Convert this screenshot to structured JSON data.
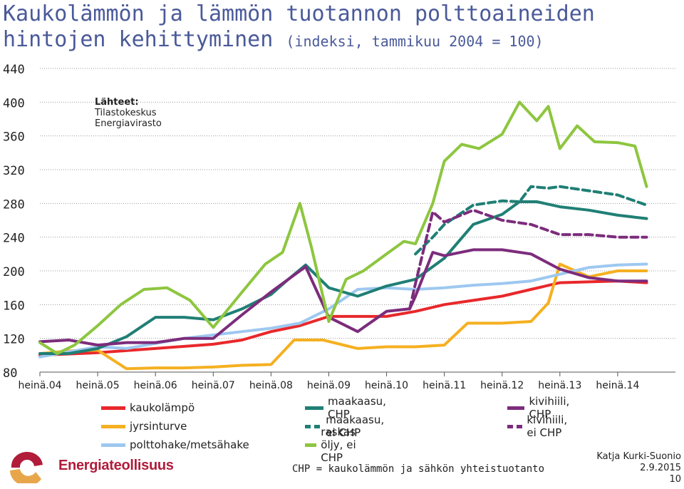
{
  "title": {
    "main": "Kaukolämmön ja lämmön tuotannon polttoaineiden",
    "line2": "hintojen kehittyminen",
    "subtitle": "(indeksi, tammikuu 2004 = 100)"
  },
  "sources": {
    "heading": "Lähteet:",
    "items": [
      "Tilastokeskus",
      "Energiavirasto"
    ]
  },
  "note": "CHP = kaukolämmön ja sähkön yhteistuotanto",
  "author": {
    "name": "Katja Kurki-Suonio",
    "date": "2.9.2015",
    "page": "10"
  },
  "logo": {
    "text": "Energiateollisuus",
    "colors": [
      "#b01c3a",
      "#e8a64b"
    ]
  },
  "chart_data": {
    "type": "line",
    "ylim": [
      80,
      440
    ],
    "yticks": [
      80,
      120,
      160,
      200,
      240,
      280,
      320,
      360,
      400,
      440
    ],
    "xlim": [
      2004.0,
      2015.0
    ],
    "xtick_labels": [
      "heinä.04",
      "heinä.05",
      "heinä.06",
      "heinä.07",
      "heinä.08",
      "heinä.09",
      "heinä.10",
      "heinä.11",
      "heinä.12",
      "heinä.13",
      "heinä.14"
    ],
    "grid": true,
    "legend_position": "bottom",
    "series": [
      {
        "name": "kaukolämpö",
        "color": "#e8282b",
        "dash": false,
        "x": [
          2004.0,
          2005.0,
          2006.0,
          2007.0,
          2007.5,
          2008.0,
          2008.5,
          2009.0,
          2009.5,
          2010.0,
          2010.5,
          2011.0,
          2011.5,
          2012.0,
          2012.5,
          2013.0,
          2013.5,
          2014.0,
          2014.5
        ],
        "y": [
          100,
          103,
          108,
          113,
          118,
          128,
          135,
          146,
          146,
          146,
          152,
          160,
          165,
          170,
          178,
          186,
          187,
          188,
          186
        ]
      },
      {
        "name": "jyrsinturve",
        "color": "#f5b021",
        "dash": false,
        "x": [
          2004.0,
          2004.5,
          2005.0,
          2005.5,
          2006.0,
          2006.5,
          2007.0,
          2007.5,
          2008.0,
          2008.4,
          2008.9,
          2009.5,
          2010.0,
          2010.5,
          2011.0,
          2011.4,
          2012.0,
          2012.5,
          2012.8,
          2013.0,
          2013.5,
          2014.0,
          2014.5
        ],
        "y": [
          102,
          105,
          106,
          84,
          85,
          85,
          86,
          88,
          89,
          118,
          118,
          108,
          110,
          110,
          112,
          138,
          138,
          140,
          162,
          208,
          193,
          200,
          200
        ]
      },
      {
        "name": "polttohake/metsähake",
        "color": "#9dc8f0",
        "dash": false,
        "x": [
          2004.0,
          2004.5,
          2005.0,
          2005.5,
          2006.0,
          2006.5,
          2007.0,
          2007.5,
          2008.0,
          2008.5,
          2009.0,
          2009.5,
          2010.0,
          2010.5,
          2011.0,
          2011.5,
          2012.0,
          2012.5,
          2013.0,
          2013.5,
          2014.0,
          2014.5
        ],
        "y": [
          98,
          104,
          110,
          108,
          114,
          120,
          124,
          128,
          132,
          138,
          155,
          178,
          180,
          178,
          180,
          183,
          185,
          188,
          196,
          204,
          207,
          208
        ]
      },
      {
        "name": "maakaasu, CHP",
        "color": "#1f7f75",
        "dash": false,
        "x": [
          2004.0,
          2004.5,
          2005.0,
          2005.5,
          2006.0,
          2006.5,
          2007.0,
          2007.5,
          2008.0,
          2008.3,
          2008.6,
          2009.0,
          2009.5,
          2010.0,
          2010.5,
          2010.8,
          2011.0,
          2011.5,
          2012.0,
          2012.3,
          2012.6,
          2013.0,
          2013.5,
          2014.0,
          2014.5
        ],
        "y": [
          102,
          102,
          108,
          122,
          145,
          145,
          142,
          155,
          172,
          190,
          207,
          180,
          170,
          182,
          190,
          205,
          215,
          255,
          267,
          282,
          282,
          276,
          272,
          266,
          262
        ]
      },
      {
        "name": "maakaasu, ei CHP",
        "color": "#1f7f75",
        "dash": true,
        "x": [
          2010.5,
          2010.8,
          2011.0,
          2011.5,
          2012.0,
          2012.3,
          2012.5,
          2012.8,
          2013.0,
          2013.5,
          2014.0,
          2014.5
        ],
        "y": [
          220,
          240,
          255,
          278,
          283,
          282,
          300,
          298,
          300,
          295,
          290,
          278
        ]
      },
      {
        "name": "kivihiili, CHP",
        "color": "#7c2c7c",
        "dash": false,
        "x": [
          2004.0,
          2004.5,
          2005.0,
          2005.5,
          2006.0,
          2006.5,
          2007.0,
          2007.5,
          2008.0,
          2008.4,
          2008.6,
          2009.0,
          2009.5,
          2010.0,
          2010.4,
          2010.5,
          2010.8,
          2011.0,
          2011.5,
          2012.0,
          2012.5,
          2013.0,
          2013.5,
          2014.0,
          2014.5
        ],
        "y": [
          116,
          118,
          112,
          115,
          115,
          120,
          120,
          148,
          175,
          195,
          205,
          145,
          128,
          152,
          155,
          170,
          222,
          218,
          225,
          225,
          220,
          202,
          192,
          188,
          188
        ]
      },
      {
        "name": "kivihiili, ei CHP",
        "color": "#7c2c7c",
        "dash": true,
        "x": [
          2010.4,
          2010.5,
          2010.8,
          2011.0,
          2011.5,
          2012.0,
          2012.5,
          2013.0,
          2013.5,
          2014.0,
          2014.5
        ],
        "y": [
          155,
          185,
          270,
          258,
          272,
          260,
          255,
          243,
          243,
          240,
          240
        ]
      },
      {
        "name": "raskas öljy, ei CHP",
        "color": "#8dc63f",
        "dash": false,
        "x": [
          2004.0,
          2004.3,
          2004.6,
          2005.0,
          2005.4,
          2005.8,
          2006.2,
          2006.6,
          2007.0,
          2007.5,
          2007.9,
          2008.2,
          2008.5,
          2008.7,
          2009.0,
          2009.3,
          2009.6,
          2010.0,
          2010.3,
          2010.5,
          2010.8,
          2011.0,
          2011.3,
          2011.6,
          2012.0,
          2012.3,
          2012.6,
          2012.8,
          2013.0,
          2013.3,
          2013.6,
          2014.0,
          2014.3,
          2014.5
        ],
        "y": [
          115,
          102,
          112,
          135,
          160,
          178,
          180,
          165,
          133,
          175,
          208,
          222,
          280,
          228,
          140,
          190,
          200,
          220,
          235,
          232,
          280,
          330,
          350,
          345,
          362,
          400,
          378,
          395,
          345,
          372,
          353,
          352,
          348,
          300
        ]
      }
    ]
  }
}
